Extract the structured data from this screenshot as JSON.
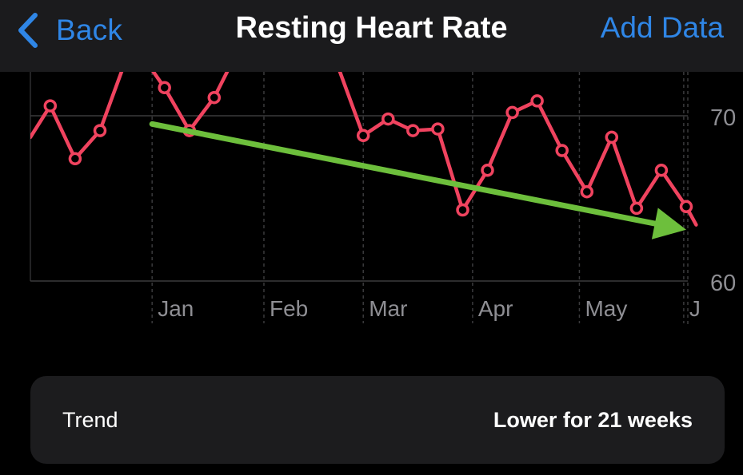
{
  "nav": {
    "back_label": "Back",
    "title": "Resting Heart Rate",
    "add_data_label": "Add Data"
  },
  "colors": {
    "background": "#000000",
    "navbar": "#1b1b1d",
    "accent": "#2f86e6",
    "series": "#f0435f",
    "trend_arrow": "#6dbf3c",
    "card": "#1c1c1e",
    "axis_text": "#8e8e93"
  },
  "icons": {
    "back": "chevron-left-icon",
    "trend": "arrow-trend-down"
  },
  "chart_data": {
    "type": "line",
    "title": "",
    "xlabel": "",
    "ylabel": "",
    "x_unit": "weeks since start of visible range",
    "x_range": [
      -1.8,
      24.6
    ],
    "ylim": [
      60,
      73
    ],
    "y_ticks": [
      {
        "value": 70,
        "label": "70"
      },
      {
        "value": 60,
        "label": "60"
      }
    ],
    "month_ticks": [
      {
        "x": 3.1,
        "label": "Jan"
      },
      {
        "x": 7.6,
        "label": "Feb"
      },
      {
        "x": 11.6,
        "label": "Mar"
      },
      {
        "x": 16.0,
        "label": "Apr"
      },
      {
        "x": 20.3,
        "label": "May"
      },
      {
        "x": 24.5,
        "label": "J"
      }
    ],
    "grid": true,
    "series": [
      {
        "values": [
          [
            -1.8,
            68.7
          ],
          [
            -1,
            70.6
          ],
          [
            0,
            67.4
          ],
          [
            1,
            69.1
          ],
          [
            2,
            73.2
          ],
          [
            2.9,
            73.2
          ],
          [
            3.6,
            71.7
          ],
          [
            4.6,
            69.1
          ],
          [
            5.6,
            71.1
          ],
          [
            6.3,
            73.2
          ],
          [
            8.8,
            73.2
          ],
          [
            9.3,
            72.9
          ],
          [
            10.6,
            72.9
          ],
          [
            11.6,
            68.8
          ],
          [
            12.6,
            69.8
          ],
          [
            13.6,
            69.1
          ],
          [
            14.6,
            69.2
          ],
          [
            15.6,
            64.3
          ],
          [
            16.6,
            66.7
          ],
          [
            17.6,
            70.2
          ],
          [
            18.6,
            70.9
          ],
          [
            19.6,
            67.9
          ],
          [
            20.6,
            65.4
          ],
          [
            21.6,
            68.7
          ],
          [
            22.6,
            64.4
          ],
          [
            23.6,
            66.7
          ],
          [
            24.6,
            64.5
          ],
          [
            25,
            63.4
          ]
        ]
      }
    ],
    "trend_arrow": {
      "from": [
        3.1,
        69.5
      ],
      "to": [
        24.6,
        63.1
      ]
    }
  },
  "trend_card": {
    "label": "Trend",
    "value": "Lower for 21 weeks"
  }
}
